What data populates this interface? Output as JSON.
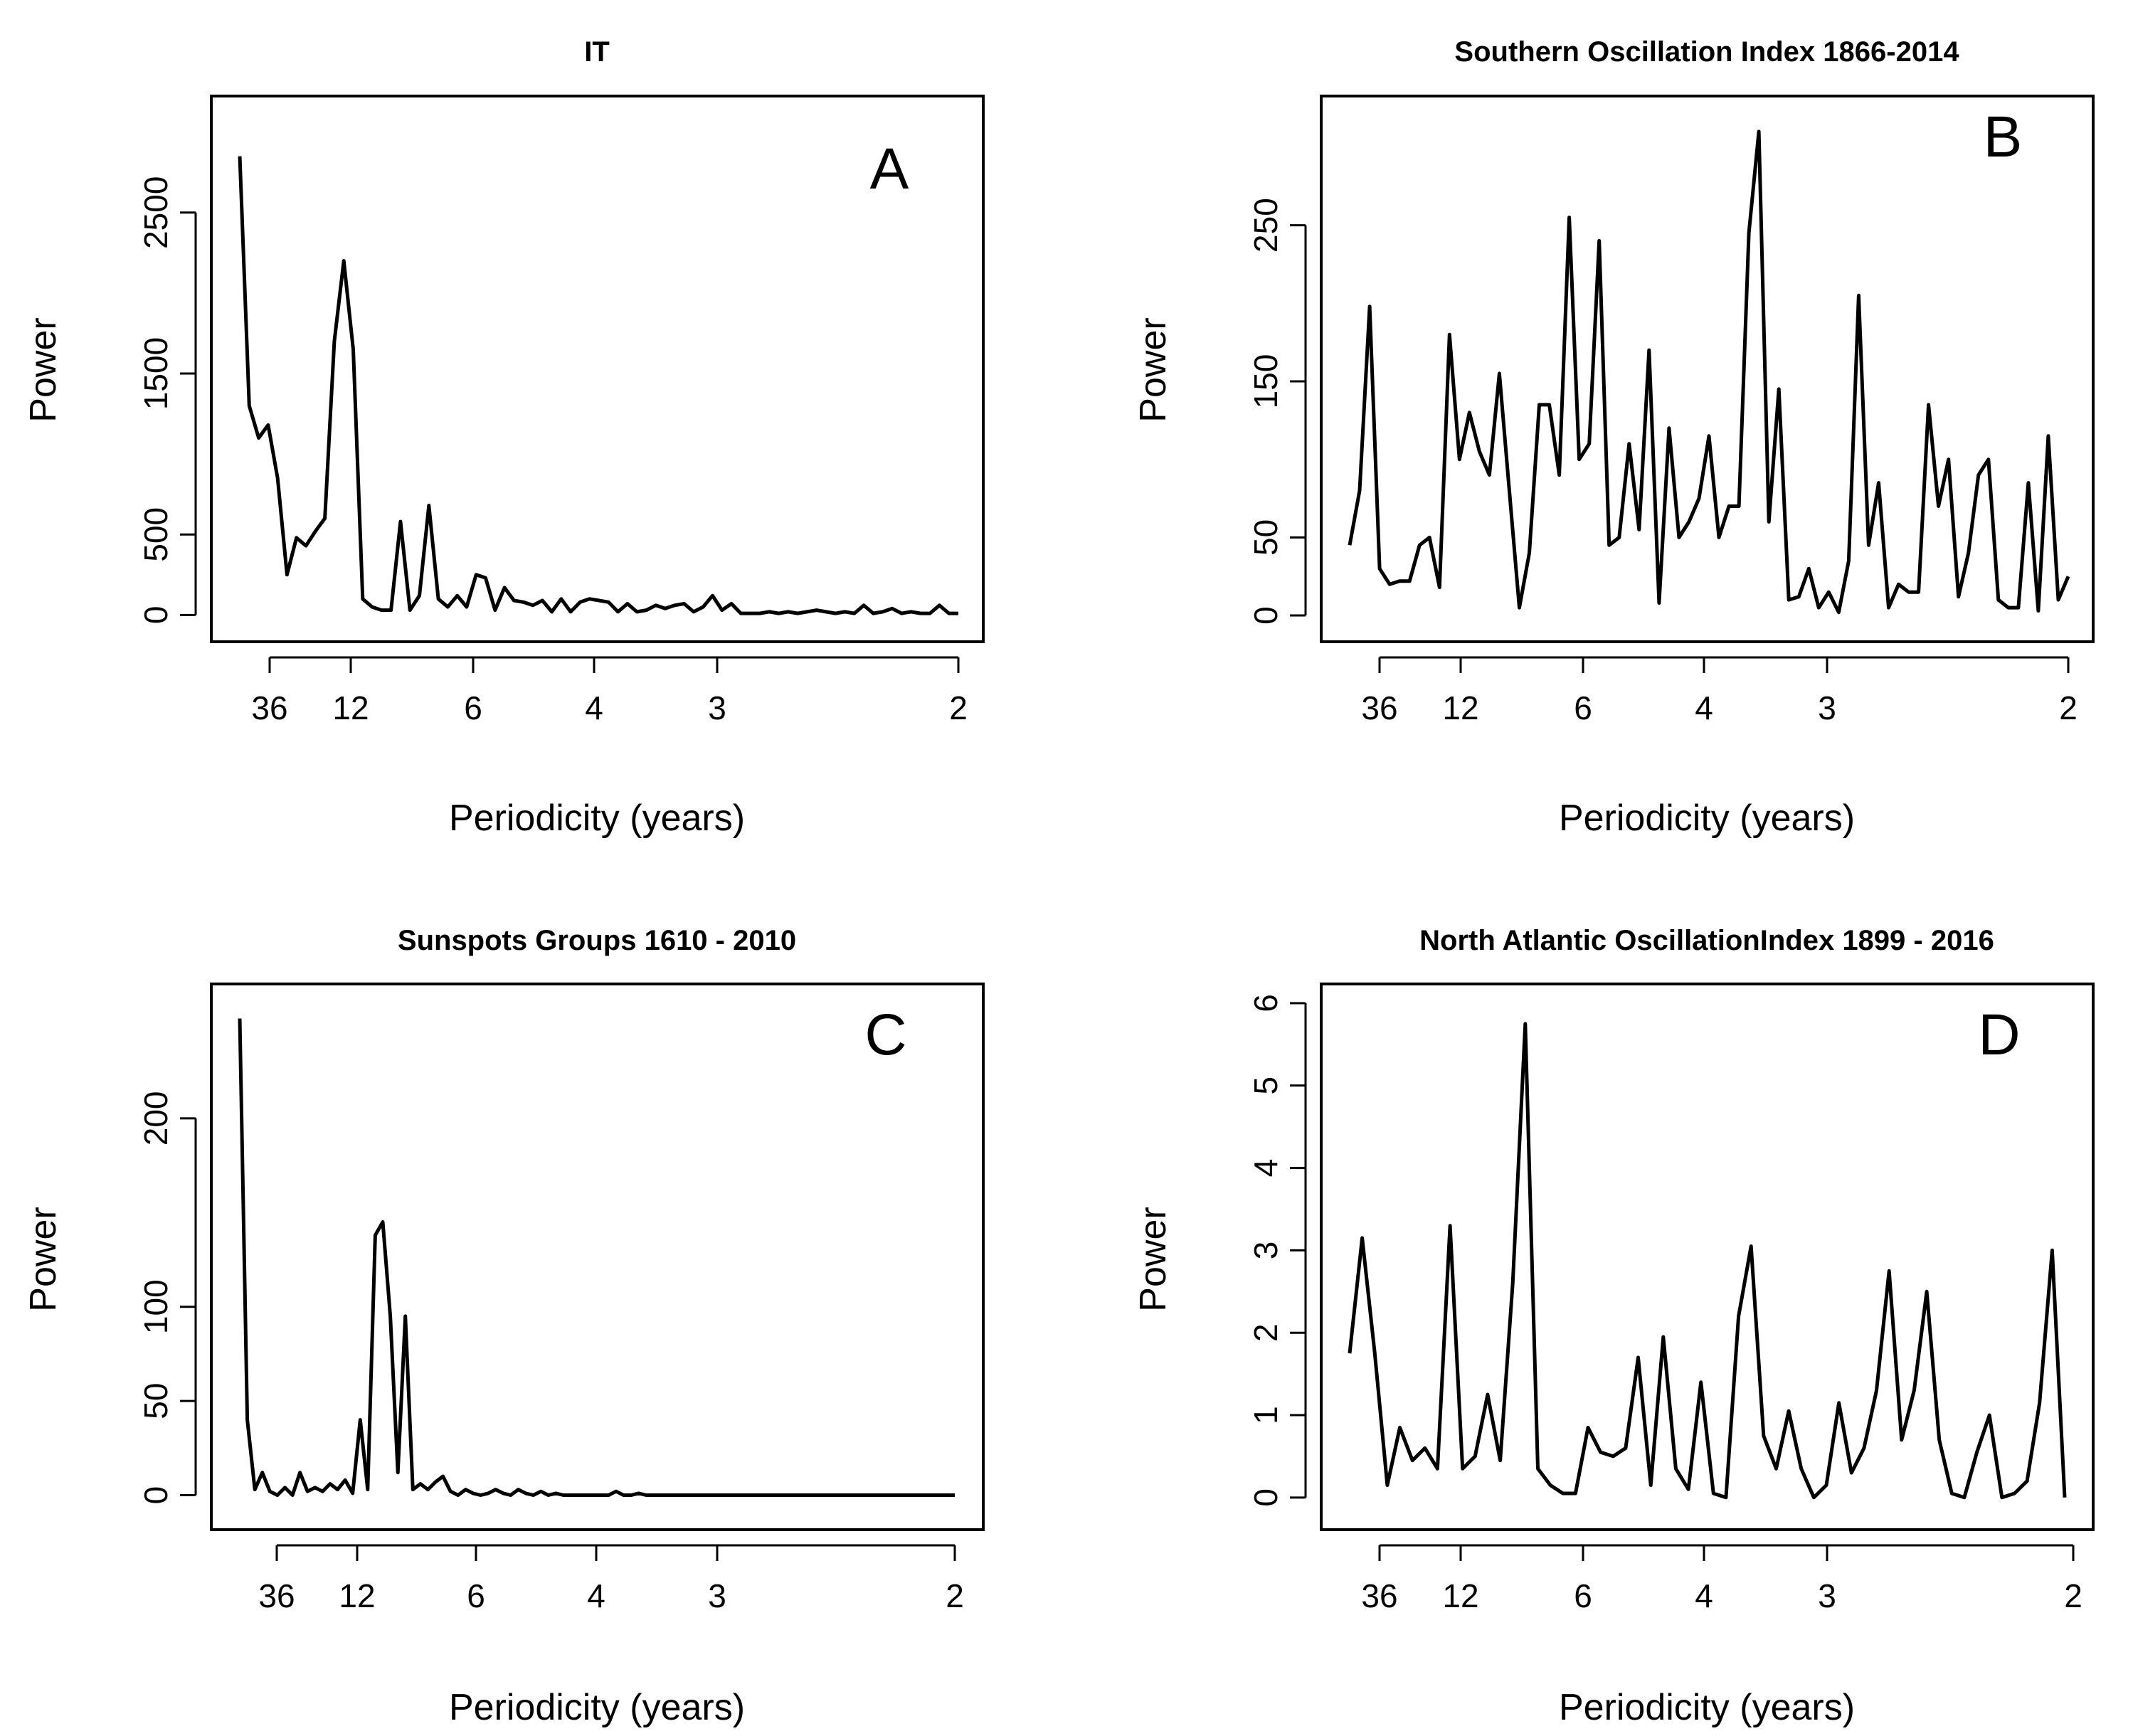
{
  "chart_data": [
    {
      "type": "line",
      "title": "IT",
      "panel_label": "A",
      "xlabel": "Periodicity (years)",
      "ylabel": "Power",
      "x_ticks": [
        "36",
        "12",
        "6",
        "4",
        "3",
        "2"
      ],
      "y_ticks": [
        0,
        500,
        1500,
        2500
      ],
      "ylim": [
        -100,
        3100
      ],
      "series": [
        {
          "name": "IT",
          "values": [
            2850,
            1300,
            1100,
            1180,
            850,
            250,
            480,
            430,
            520,
            600,
            1700,
            2200,
            1650,
            100,
            50,
            30,
            30,
            580,
            30,
            120,
            680,
            100,
            50,
            120,
            50,
            250,
            230,
            30,
            170,
            90,
            80,
            60,
            90,
            20,
            100,
            20,
            80,
            100,
            90,
            80,
            20,
            70,
            20,
            30,
            60,
            40,
            60,
            70,
            20,
            50,
            120,
            30,
            70,
            10,
            10,
            10,
            20,
            10,
            20,
            10,
            20,
            30,
            20,
            10,
            20,
            10,
            60,
            10,
            20,
            40,
            10,
            20,
            10,
            10,
            60,
            10,
            10
          ]
        }
      ]
    },
    {
      "type": "line",
      "title": "Southern Oscillation Index 1866-2014",
      "panel_label": "B",
      "xlabel": "Periodicity (years)",
      "ylabel": "Power",
      "x_ticks": [
        "36",
        "12",
        "6",
        "4",
        "3",
        "2"
      ],
      "y_ticks": [
        0,
        50,
        150,
        250
      ],
      "ylim": [
        -10,
        320
      ],
      "series": [
        {
          "name": "SOI",
          "values": [
            45,
            80,
            198,
            30,
            20,
            22,
            22,
            45,
            50,
            18,
            180,
            100,
            130,
            105,
            90,
            155,
            80,
            5,
            40,
            135,
            135,
            90,
            255,
            100,
            110,
            240,
            45,
            50,
            110,
            55,
            170,
            8,
            120,
            50,
            60,
            75,
            115,
            50,
            70,
            70,
            245,
            310,
            60,
            145,
            10,
            12,
            30,
            5,
            15,
            2,
            35,
            205,
            45,
            85,
            5,
            20,
            15,
            15,
            135,
            70,
            100,
            12,
            40,
            90,
            100,
            10,
            5,
            5,
            85,
            3,
            115,
            10,
            25
          ]
        }
      ]
    },
    {
      "type": "line",
      "title": "Sunspots Groups 1610 - 2010",
      "panel_label": "C",
      "xlabel": "Periodicity (years)",
      "ylabel": "Power",
      "x_ticks": [
        "36",
        "12",
        "6",
        "4",
        "3",
        "2"
      ],
      "y_ticks": [
        0,
        50,
        100,
        200
      ],
      "ylim": [
        -10,
        260
      ],
      "series": [
        {
          "name": "Sunspots Groups",
          "values": [
            253,
            40,
            3,
            12,
            2,
            0,
            4,
            0,
            12,
            2,
            4,
            2,
            6,
            3,
            8,
            1,
            40,
            3,
            138,
            145,
            95,
            12,
            95,
            3,
            6,
            3,
            7,
            10,
            2,
            0,
            3,
            1,
            0,
            1,
            3,
            1,
            0,
            3,
            1,
            0,
            2,
            0,
            1,
            0,
            0,
            0,
            0,
            0,
            0,
            0,
            2,
            0,
            0,
            1,
            0,
            0,
            0,
            0,
            0,
            0,
            0,
            0,
            0,
            0,
            0,
            0,
            0,
            0,
            0,
            0,
            0,
            0,
            0,
            0,
            0,
            0,
            0,
            0,
            0,
            0,
            0,
            0,
            0,
            0,
            0,
            0,
            0,
            0,
            0,
            0,
            0,
            0,
            0,
            0,
            0,
            0
          ]
        }
      ]
    },
    {
      "type": "line",
      "title": "North Atlantic OscillationIndex 1899 - 2016",
      "panel_label": "D",
      "xlabel": "Periodicity (years)",
      "ylabel": "Power",
      "x_ticks": [
        "36",
        "12",
        "6",
        "4",
        "3",
        "2"
      ],
      "y_ticks": [
        0,
        1,
        2,
        3,
        4,
        5,
        6
      ],
      "ylim": [
        -0.2,
        6.0
      ],
      "series": [
        {
          "name": "NAO",
          "values": [
            1.75,
            3.15,
            1.75,
            0.15,
            0.85,
            0.45,
            0.6,
            0.35,
            3.3,
            0.35,
            0.5,
            1.25,
            0.45,
            2.6,
            5.75,
            0.35,
            0.15,
            0.05,
            0.05,
            0.85,
            0.55,
            0.5,
            0.6,
            1.7,
            0.15,
            1.95,
            0.35,
            0.1,
            1.4,
            0.05,
            0.0,
            2.2,
            3.05,
            0.75,
            0.35,
            1.05,
            0.35,
            0.0,
            0.15,
            1.15,
            0.3,
            0.6,
            1.3,
            2.75,
            0.7,
            1.3,
            2.5,
            0.7,
            0.05,
            0.0,
            0.55,
            1.0,
            0.0,
            0.05,
            0.2,
            1.15,
            3.0,
            0.0
          ]
        }
      ]
    }
  ]
}
